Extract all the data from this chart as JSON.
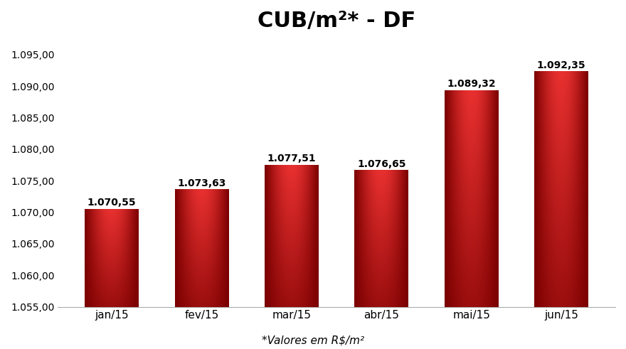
{
  "title": "CUB/m²* - DF",
  "categories": [
    "jan/15",
    "fev/15",
    "mar/15",
    "abr/15",
    "mai/15",
    "jun/15"
  ],
  "values": [
    1070.55,
    1073.63,
    1077.51,
    1076.65,
    1089.32,
    1092.35
  ],
  "labels": [
    "1.070,55",
    "1.073,63",
    "1.077,51",
    "1.076,65",
    "1.089,32",
    "1.092,35"
  ],
  "bar_color_bright": "#e83030",
  "bar_color_dark": "#7a0000",
  "ylim_min": 1055,
  "ylim_max": 1096,
  "yticks": [
    1055,
    1060,
    1065,
    1070,
    1075,
    1080,
    1085,
    1090,
    1095
  ],
  "ytick_labels": [
    "1.055,00",
    "1.060,00",
    "1.065,00",
    "1.070,00",
    "1.075,00",
    "1.080,00",
    "1.085,00",
    "1.090,00",
    "1.095,00"
  ],
  "xlabel_note": "*Valores em R$/m²",
  "background_color": "#ffffff",
  "title_fontsize": 22,
  "tick_fontsize": 10,
  "label_fontsize": 10,
  "note_fontsize": 11,
  "bar_width": 0.6
}
